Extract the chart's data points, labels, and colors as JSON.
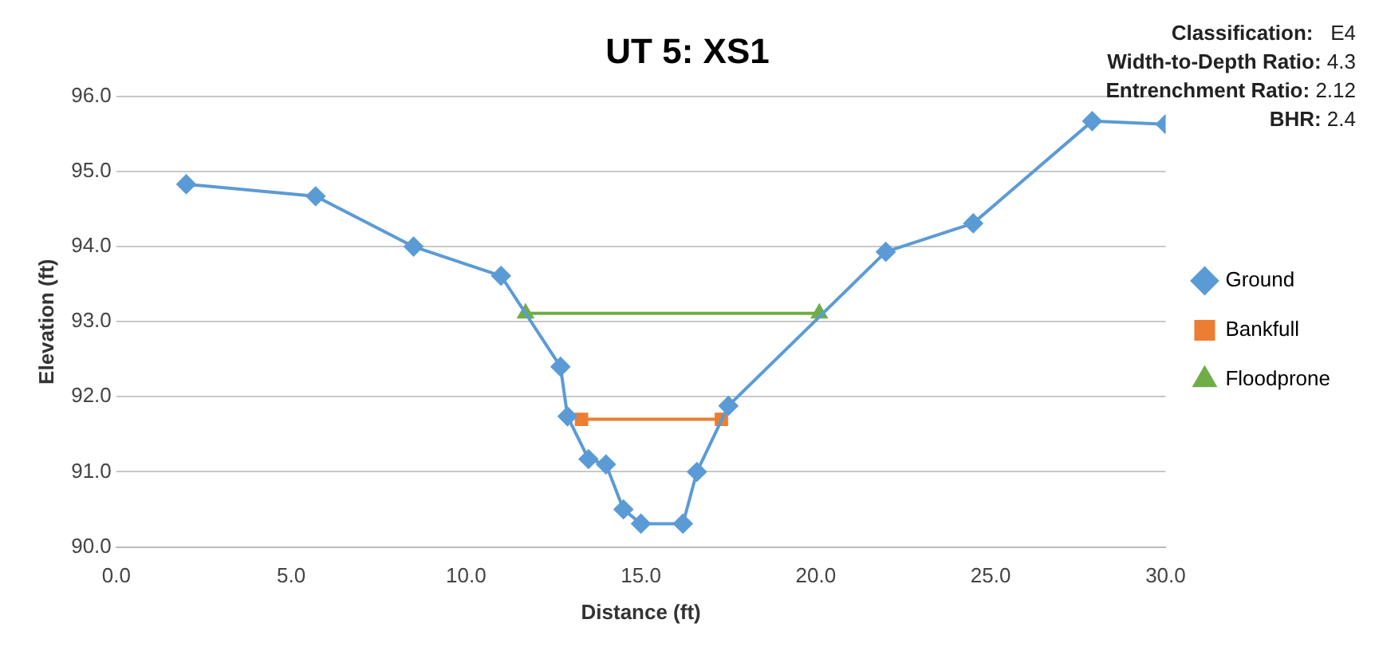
{
  "chart_data": {
    "type": "line",
    "title": "UT 5: XS1",
    "xlabel": "Distance (ft)",
    "ylabel": "Elevation (ft)",
    "annotations": [
      "Classification:   E4",
      "Width-to-Depth Ratio: 4.3",
      "Entrenchment Ratio: 2.12",
      "BHR: 2.4"
    ],
    "xlim": [
      0,
      30
    ],
    "xticks": [
      {
        "value": 0,
        "label": "0.0"
      },
      {
        "value": 5,
        "label": "5.0"
      },
      {
        "value": 10,
        "label": "10.0"
      },
      {
        "value": 15,
        "label": "15.0"
      },
      {
        "value": 20,
        "label": "20.0"
      },
      {
        "value": 25,
        "label": "25.0"
      },
      {
        "value": 30,
        "label": "30.0"
      }
    ],
    "ylim": [
      90,
      96
    ],
    "yticks": [
      {
        "value": 90,
        "label": "90.0"
      },
      {
        "value": 91,
        "label": "91.0"
      },
      {
        "value": 92,
        "label": "92.0"
      },
      {
        "value": 93,
        "label": "93.0"
      },
      {
        "value": 94,
        "label": "94.0"
      },
      {
        "value": 95,
        "label": "95.0"
      },
      {
        "value": 96,
        "label": "96.0"
      }
    ],
    "grid": "y",
    "legend": "right",
    "series": [
      {
        "name": "Ground",
        "color": "#5b9bd5",
        "marker": "diamond",
        "x": [
          2.0,
          5.7,
          8.5,
          11.0,
          12.7,
          12.9,
          13.5,
          14.0,
          14.5,
          15.0,
          16.2,
          16.6,
          17.5,
          22.0,
          24.5,
          27.9,
          30.0
        ],
        "values": [
          94.83,
          94.67,
          94.0,
          93.61,
          92.4,
          91.74,
          91.17,
          91.1,
          90.5,
          90.31,
          90.31,
          91.0,
          91.88,
          93.93,
          94.31,
          95.67,
          95.63
        ]
      },
      {
        "name": "Bankfull",
        "color": "#ed7d31",
        "marker": "square",
        "x": [
          13.3,
          17.3
        ],
        "values": [
          91.7,
          91.7
        ]
      },
      {
        "name": "Floodprone",
        "color": "#70ad47",
        "marker": "triangle",
        "x": [
          11.7,
          20.1
        ],
        "values": [
          93.11,
          93.11
        ]
      }
    ]
  }
}
